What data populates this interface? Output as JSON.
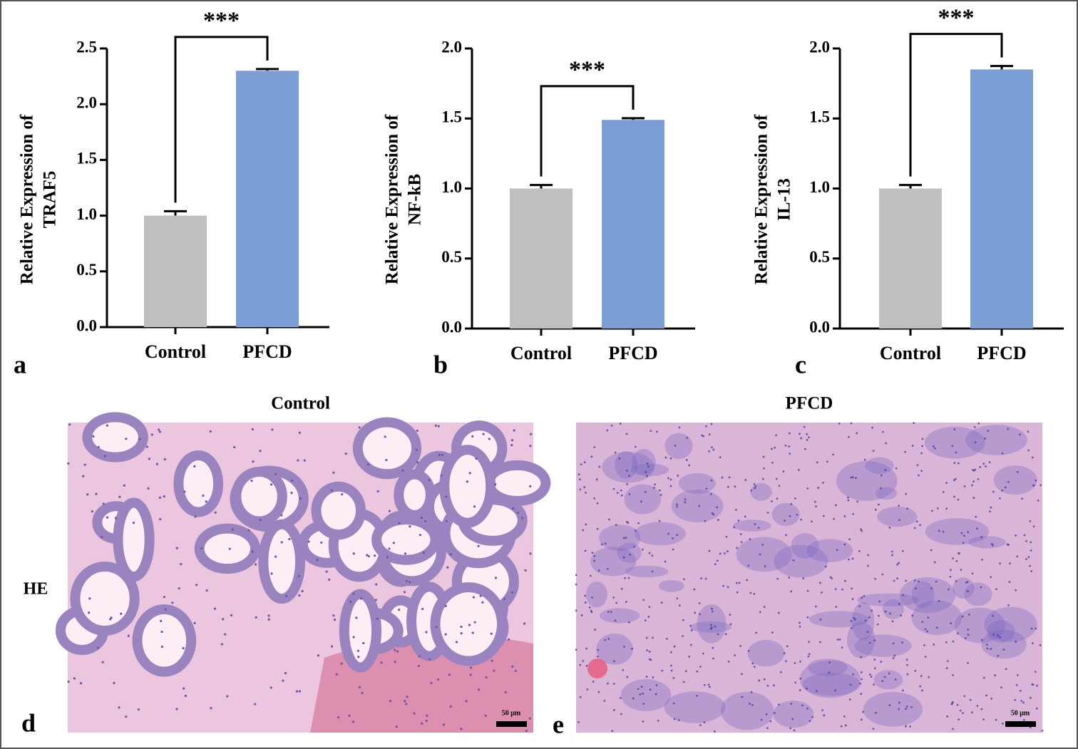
{
  "chart_data": [
    {
      "type": "bar",
      "panel": "a",
      "ylabel": [
        "Relative Expression of",
        "TRAF5"
      ],
      "categories": [
        "Control",
        "PFCD"
      ],
      "values": [
        1.0,
        2.3
      ],
      "errors": [
        0.04,
        0.015
      ],
      "colors": [
        "#bfbfbf",
        "#7b9fd4"
      ],
      "annotation": "***",
      "ylim": [
        0,
        2.5
      ],
      "yticks": [
        {
          "value": 0,
          "label": "0.0"
        },
        0.5,
        {
          "value": 1,
          "label": "1.0"
        },
        1.5,
        {
          "value": 2,
          "label": "2.0"
        },
        2.5
      ]
    },
    {
      "type": "bar",
      "panel": "b",
      "ylabel": [
        "Relative Expression of",
        "NF-kB"
      ],
      "categories": [
        "Control",
        "PFCD"
      ],
      "values": [
        1.0,
        1.49
      ],
      "errors": [
        0.025,
        0.012
      ],
      "colors": [
        "#bfbfbf",
        "#7b9fd4"
      ],
      "annotation": "***",
      "ylim": [
        0,
        2.0
      ],
      "yticks": [
        {
          "value": 0,
          "label": "0.0"
        },
        0.5,
        {
          "value": 1,
          "label": "1.0"
        },
        1.5,
        {
          "value": 2,
          "label": "2.0"
        }
      ]
    },
    {
      "type": "bar",
      "panel": "c",
      "ylabel": [
        "Relative Expression of",
        "IL-13"
      ],
      "categories": [
        "Control",
        "PFCD"
      ],
      "values": [
        1.0,
        1.85
      ],
      "errors": [
        0.025,
        0.025
      ],
      "colors": [
        "#bfbfbf",
        "#7b9fd4"
      ],
      "annotation": "***",
      "ylim": [
        0,
        2.0
      ],
      "yticks": [
        {
          "value": 0,
          "label": "0.0"
        },
        0.5,
        {
          "value": 1,
          "label": "1.0"
        },
        1.5,
        {
          "value": 2,
          "label": "2.0"
        }
      ]
    }
  ],
  "row_label": "HE",
  "images": [
    {
      "title": "Control",
      "panel": "d",
      "scale": "50 μm"
    },
    {
      "title": "PFCD",
      "panel": "e",
      "scale": "50 μm"
    }
  ]
}
